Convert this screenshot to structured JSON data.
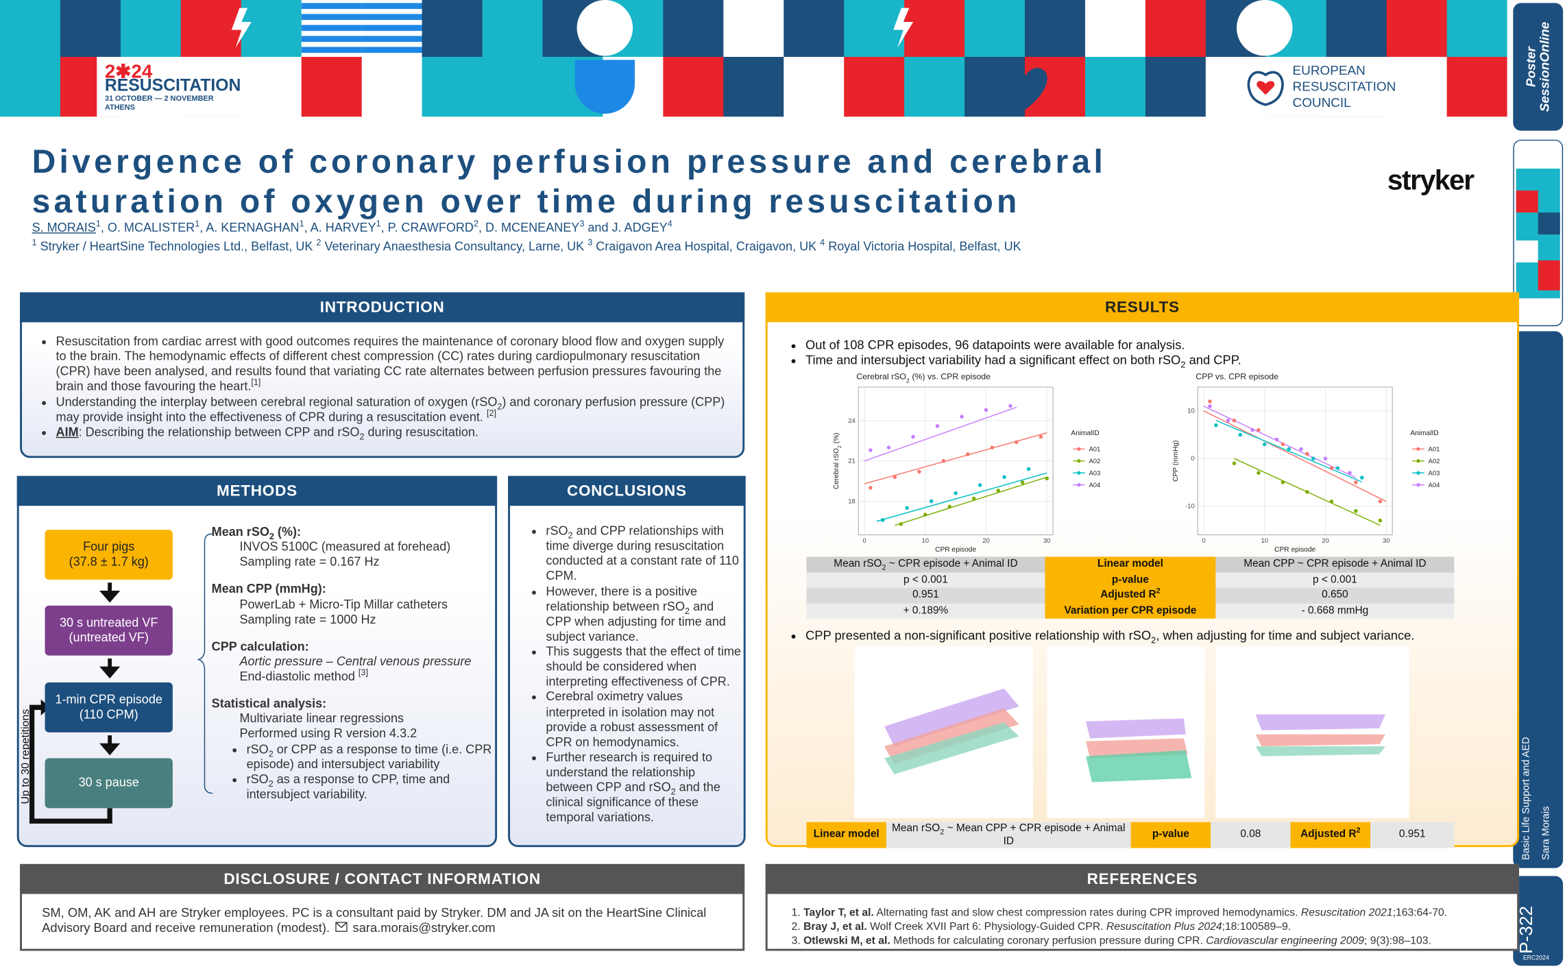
{
  "header": {
    "conference_year": "2✱24",
    "conference_name": "RESUSCITATION",
    "conference_dates": "31 OCTOBER — 2 NOVEMBER",
    "conference_city": "ATHENS",
    "erc": [
      "EUROPEAN",
      "RESUSCITATION",
      "COUNCIL"
    ],
    "sponsor": "stryker",
    "title": [
      "Divergence of coronary perfusion pressure and cerebral",
      "saturation of oxygen over time during resuscitation"
    ],
    "authors": [
      {
        "u": "S. MORAIS"
      },
      {
        "sup": "1"
      },
      ", O. MCALISTER",
      {
        "sup": "1"
      },
      ", A. KERNAGHAN",
      {
        "sup": "1"
      },
      ", A. HARVEY",
      {
        "sup": "1"
      },
      ", P. CRAWFORD",
      {
        "sup": "2"
      },
      ", D. MCENEANEY",
      {
        "sup": "3"
      },
      " and J. ADGEY",
      {
        "sup": "4"
      }
    ],
    "affiliations": [
      {
        "sup": "1"
      },
      " Stryker / HeartSine Technologies Ltd., Belfast, UK ",
      {
        "sup": "2"
      },
      " Veterinary Anaesthesia Consultancy, Larne, UK ",
      {
        "sup": "3"
      },
      " Craigavon Area Hospital, Craigavon, UK ",
      {
        "sup": "4"
      },
      " Royal Victoria Hospital, Belfast, UK"
    ]
  },
  "sidebar": {
    "logo": [
      "Poster",
      "SessionOnline"
    ],
    "topic": "Basic Life Support and AED",
    "presenter": "Sara Morais",
    "poster_id": "P-322",
    "event": "ERC2024"
  },
  "intro": {
    "heading": "INTRODUCTION",
    "bullets": [
      [
        "Resuscitation from cardiac arrest with good outcomes requires the maintenance of coronary blood flow and oxygen supply to the brain. The hemodynamic effects of different chest compression (CC) rates during cardiopulmonary resuscitation (CPR) have been analysed, and results found that variating CC rate alternates between perfusion pressures favouring the brain and those favouring the heart.",
        {
          "sup": "[1]"
        }
      ],
      [
        "Understanding the interplay between cerebral regional saturation of oxygen (rSO",
        {
          "sub": "2"
        },
        ") and coronary perfusion pressure (CPP) may provide insight into the effectiveness of CPR during a resuscitation event. ",
        {
          "sup": "[2]"
        }
      ],
      [
        {
          "bu": "AIM"
        },
        ": Describing the relationship between CPP and rSO",
        {
          "sub": "2"
        },
        " during resuscitation."
      ]
    ]
  },
  "methods": {
    "heading": "METHODS",
    "flow": [
      [
        "Four pigs",
        "(37.8 ± 1.7 kg)"
      ],
      [
        "30 s untreated VF",
        "(untreated VF)"
      ],
      [
        "1-min CPR episode",
        "(110 CPM)"
      ],
      [
        "30 s pause"
      ]
    ],
    "loop_label": "Up to 30 repetitions",
    "details": [
      {
        "heading": [
          "Mean rSO",
          {
            "sub": "2"
          },
          " (%):"
        ],
        "lines": [
          "INVOS 5100C (measured at forehead)",
          "Sampling rate = 0.167 Hz"
        ]
      },
      {
        "heading": "Mean CPP (mmHg):",
        "lines": [
          "PowerLab + Micro-Tip Millar catheters",
          "Sampling rate = 1000 Hz"
        ]
      },
      {
        "heading": "CPP calculation:",
        "lines": [
          [
            {
              "i": "Aortic pressure – Central venous pressure"
            }
          ],
          [
            "End-diastolic method ",
            {
              "sup": "[3]"
            }
          ]
        ]
      },
      {
        "heading": "Statistical analysis:",
        "lines": [
          "Multivariate linear regressions",
          "Performed using R version 4.3.2"
        ],
        "bullets": [
          [
            "rSO",
            {
              "sub": "2"
            },
            " or CPP as a response to time (i.e. CPR episode) and intersubject variability"
          ],
          [
            "rSO",
            {
              "sub": "2"
            },
            " as a response to CPP, time and intersubject variability."
          ]
        ]
      }
    ]
  },
  "conclusions": {
    "heading": "CONCLUSIONS",
    "bullets": [
      [
        "rSO",
        {
          "sub": "2"
        },
        " and CPP relationships with time diverge during resuscitation conducted at a constant rate of 110 CPM."
      ],
      [
        "However, there is a positive relationship between rSO",
        {
          "sub": "2"
        },
        " and CPP when adjusting for time and subject variance."
      ],
      [
        "This suggests that the effect of time should be considered when interpreting effectiveness of CPR."
      ],
      [
        "Cerebral oximetry values interpreted in isolation may not provide a robust assessment of CPR on hemodynamics."
      ],
      [
        "Further research is required to understand the relationship between CPP and rSO",
        {
          "sub": "2"
        },
        " and the clinical significance of these temporal variations."
      ]
    ]
  },
  "results": {
    "heading": "RESULTS",
    "bullets": [
      [
        "Out of 108 CPR episodes, 96 datapoints were available for analysis."
      ],
      [
        "Time and intersubject variability had a significant effect on both rSO",
        {
          "sub": "2"
        },
        " and CPP."
      ]
    ],
    "table": {
      "rows": [
        [
          [
            "Mean rSO",
            {
              "sub": "2"
            },
            " ~ CPR episode + Animal ID"
          ],
          "Linear model",
          "Mean CPP ~ CPR episode + Animal ID"
        ],
        [
          "p < 0.001",
          "p-value",
          "p < 0.001"
        ],
        [
          "0.951",
          [
            "Adjusted R",
            {
              "sup": "2"
            }
          ],
          "0.650"
        ],
        [
          "+ 0.189%",
          "Variation per CPR episode",
          "- 0.668 mmHg"
        ]
      ]
    },
    "bullet2": [
      "CPP presented a non-significant positive relationship with rSO",
      {
        "sub": "2"
      },
      ", when adjusting for time and subject variance."
    ],
    "model_row": [
      "Linear model",
      [
        "Mean rSO",
        {
          "sub": "2"
        },
        " ~ Mean CPP + CPR episode + Animal ID"
      ],
      "p-value",
      "0.08",
      [
        "Adjusted R",
        {
          "sup": "2"
        }
      ],
      "0.951"
    ]
  },
  "chart_data": [
    {
      "type": "scatter",
      "title": [
        "Cerebral rSO",
        {
          "sub": "2"
        },
        " (%) vs. CPR episode"
      ],
      "x_label": "CPR episode",
      "y_label": [
        "Cerebral rSO",
        {
          "sub": "2"
        },
        " (%)"
      ],
      "legend_title": "AnimalID",
      "legend": "right",
      "grid": true,
      "xlim": [
        -1,
        31
      ],
      "xticks": [
        0,
        10,
        20,
        30
      ],
      "ylim": [
        15.5,
        26.5
      ],
      "yticks": [
        18,
        21,
        24
      ],
      "series": [
        {
          "name": "A01",
          "color": "#F8766D",
          "x": [
            1,
            5,
            9,
            13,
            17,
            21,
            25,
            29
          ],
          "values": [
            19.0,
            19.8,
            20.2,
            21.0,
            21.5,
            22.0,
            22.4,
            22.8
          ]
        },
        {
          "name": "A02",
          "color": "#7CAE00",
          "x": [
            6,
            10,
            14,
            18,
            22,
            26,
            30
          ],
          "values": [
            16.3,
            17.0,
            17.6,
            18.2,
            18.8,
            19.4,
            19.7
          ]
        },
        {
          "name": "A03",
          "color": "#00BFC4",
          "x": [
            3,
            7,
            11,
            15,
            19,
            23,
            27
          ],
          "values": [
            16.6,
            17.5,
            18.0,
            18.6,
            19.2,
            19.8,
            20.4
          ]
        },
        {
          "name": "A04",
          "color": "#C77CFF",
          "x": [
            1,
            4,
            8,
            12,
            16,
            20,
            24
          ],
          "values": [
            21.8,
            22.0,
            22.8,
            23.6,
            24.3,
            24.8,
            25.1
          ]
        }
      ]
    },
    {
      "type": "scatter",
      "title": "CPP vs. CPR episode",
      "x_label": "CPR episode",
      "y_label": "CPP (mmHg)",
      "legend_title": "AnimalID",
      "legend": "right",
      "grid": true,
      "xlim": [
        -1,
        31
      ],
      "xticks": [
        0,
        10,
        20,
        30
      ],
      "ylim": [
        -16,
        15
      ],
      "yticks": [
        -10,
        0,
        10
      ],
      "series": [
        {
          "name": "A01",
          "color": "#F8766D",
          "x": [
            1,
            5,
            9,
            13,
            17,
            21,
            25,
            29
          ],
          "values": [
            12,
            8,
            6,
            3,
            1,
            -2,
            -5,
            -9
          ]
        },
        {
          "name": "A02",
          "color": "#7CAE00",
          "x": [
            5,
            9,
            13,
            17,
            21,
            25,
            29
          ],
          "values": [
            -1,
            -3,
            -5,
            -7,
            -9,
            -11,
            -13
          ]
        },
        {
          "name": "A03",
          "color": "#00BFC4",
          "x": [
            2,
            6,
            10,
            14,
            18,
            22,
            26
          ],
          "values": [
            7,
            5,
            3,
            2,
            0,
            -2,
            -4
          ]
        },
        {
          "name": "A04",
          "color": "#C77CFF",
          "x": [
            1,
            4,
            8,
            12,
            16,
            20,
            24
          ],
          "values": [
            11,
            8,
            6,
            4,
            2,
            0,
            -3
          ]
        }
      ]
    }
  ],
  "disclosure": {
    "heading": "DISCLOSURE / CONTACT INFORMATION",
    "text": "SM, OM, AK and AH are Stryker employees. PC is a consultant paid by Stryker. DM and JA sit on the HeartSine Clinical Advisory Board and receive remuneration (modest).",
    "email": "sara.morais@stryker.com"
  },
  "references": {
    "heading": "REFERENCES",
    "items": [
      [
        {
          "b": "Taylor T, et al."
        },
        " Alternating fast and slow chest compression rates during CPR improved hemodynamics. ",
        {
          "i": "Resuscitation 2021"
        },
        ";163:64-70."
      ],
      [
        {
          "b": "Bray J, et al."
        },
        " Wolf Creek XVII Part 6: Physiology-Guided CPR. ",
        {
          "i": "Resuscitation Plus 2024"
        },
        ";18:100589–9."
      ],
      [
        {
          "b": "Otlewski M, et al."
        },
        " Methods for calculating coronary perfusion pressure during CPR. ",
        {
          "i": "Cardiovascular engineering 2009"
        },
        "; 9(3):98–103."
      ]
    ]
  }
}
